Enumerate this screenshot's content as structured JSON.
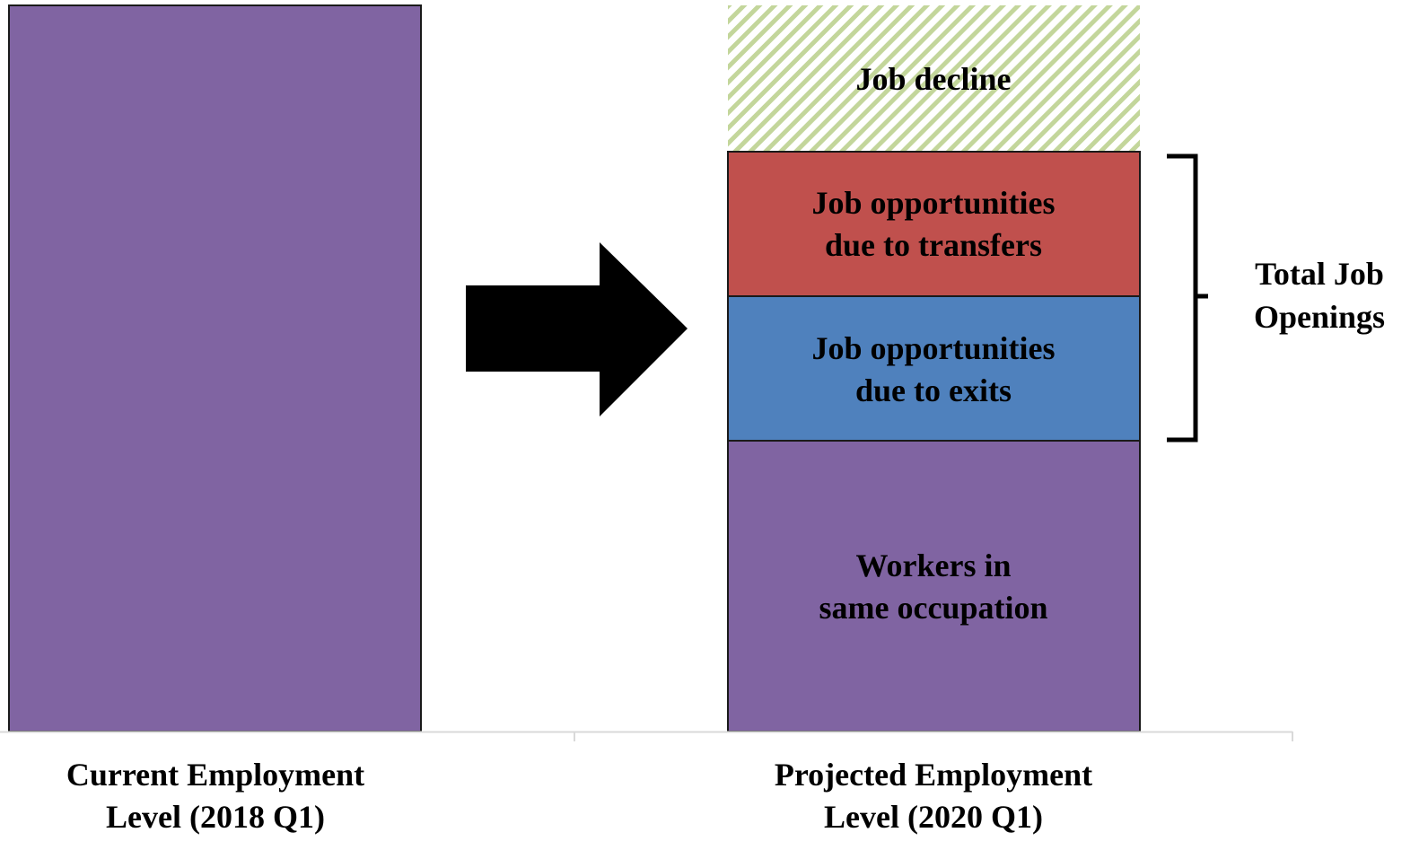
{
  "bars": [
    {
      "label": [
        "Current Employment",
        "Level (2018 Q1)"
      ]
    },
    {
      "label": [
        "Projected Employment",
        "Level (2020 Q1)"
      ],
      "segments": [
        {
          "label": [
            "Job decline"
          ]
        },
        {
          "label": [
            "Job opportunities",
            "due to transfers"
          ]
        },
        {
          "label": [
            "Job opportunities",
            "due to exits"
          ]
        },
        {
          "label": [
            "Workers in",
            "same occupation"
          ]
        }
      ]
    }
  ],
  "bracket": {
    "label": [
      "Total Job",
      "Openings"
    ]
  }
}
